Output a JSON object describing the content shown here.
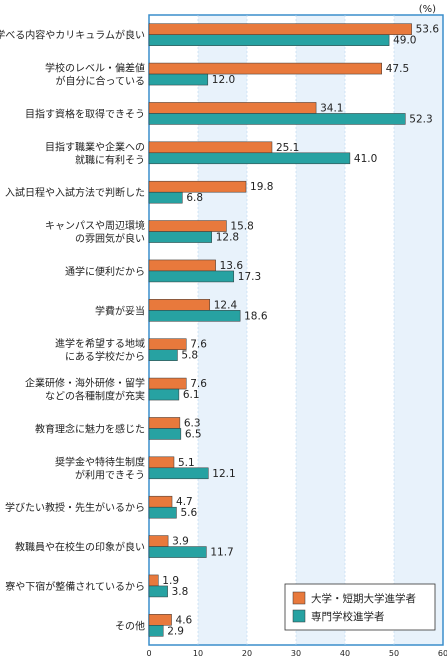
{
  "chart_data": {
    "type": "bar",
    "orientation": "horizontal",
    "unit_label": "(%)",
    "xlim": [
      0,
      60
    ],
    "x_ticks": [
      0,
      10,
      20,
      30,
      40,
      50,
      60
    ],
    "legend_position": "bottom-right",
    "colors": {
      "series_1": "#e8793c",
      "series_2": "#27a2a2",
      "band": "#e8f2fb",
      "axis": "#3a8ecb"
    },
    "categories": [
      [
        "学べる内容やカリキュラムが良い"
      ],
      [
        "学校のレベル・偏差値",
        "が自分に合っている"
      ],
      [
        "目指す資格を取得できそう"
      ],
      [
        "目指す職業や企業への",
        "就職に有利そう"
      ],
      [
        "入試日程や入試方法で判断した"
      ],
      [
        "キャンパスや周辺環境",
        "の雰囲気が良い"
      ],
      [
        "通学に便利だから"
      ],
      [
        "学費が妥当"
      ],
      [
        "進学を希望する地域",
        "にある学校だから"
      ],
      [
        "企業研修・海外研修・留学",
        "などの各種制度が充実"
      ],
      [
        "教育理念に魅力を感じた"
      ],
      [
        "奨学金や特待生制度",
        "が利用できそう"
      ],
      [
        "学びたい教授・先生がいるから"
      ],
      [
        "教職員や在校生の印象が良い"
      ],
      [
        "寮や下宿が整備されているから"
      ],
      [
        "その他"
      ]
    ],
    "series": [
      {
        "name": "大学・短期大学進学者",
        "values": [
          53.6,
          47.5,
          34.1,
          25.1,
          19.8,
          15.8,
          13.6,
          12.4,
          7.6,
          7.6,
          6.3,
          5.1,
          4.7,
          3.9,
          1.9,
          4.6
        ]
      },
      {
        "name": "専門学校進学者",
        "values": [
          49.0,
          12.0,
          52.3,
          41.0,
          6.8,
          12.8,
          17.3,
          18.6,
          5.8,
          6.1,
          6.5,
          12.1,
          5.6,
          11.7,
          3.8,
          2.9
        ]
      }
    ]
  }
}
